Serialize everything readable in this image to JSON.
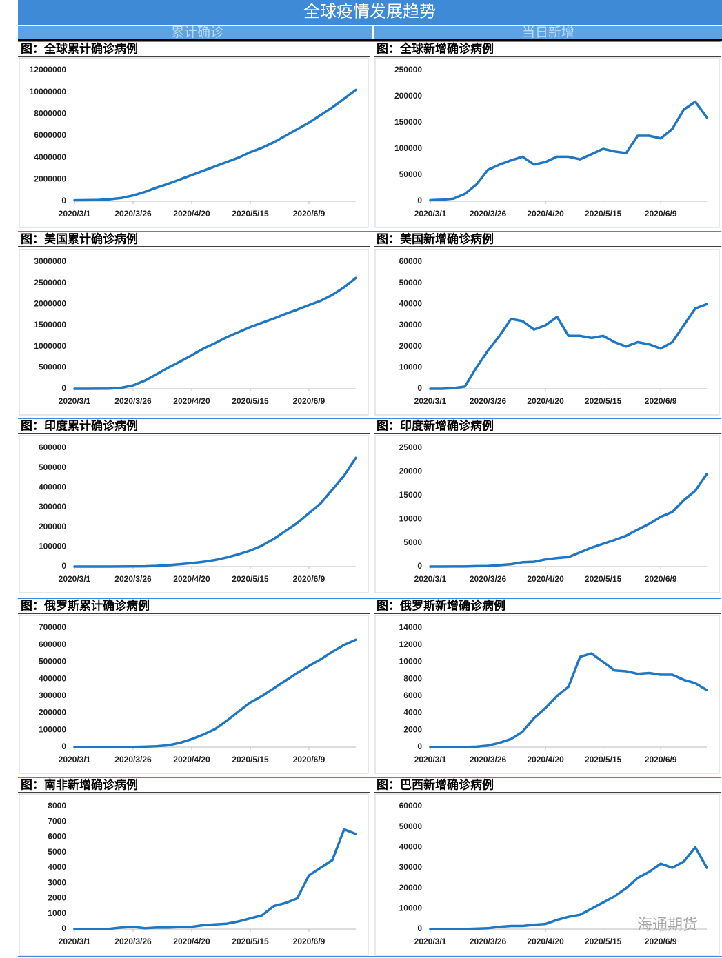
{
  "header": {
    "title": "全球疫情发展趋势",
    "columns": [
      "累计确诊",
      "当日新增"
    ]
  },
  "watermark": "海通期货",
  "chart_data": [
    {
      "type": "line",
      "title": "图：全球累计确诊病例",
      "color": "#1f77c4",
      "categories": [
        "2020/3/1",
        null,
        null,
        null,
        null,
        "2020/3/26",
        null,
        null,
        null,
        null,
        "2020/4/20",
        null,
        null,
        null,
        null,
        "2020/5/15",
        null,
        null,
        null,
        null,
        "2020/6/9",
        null,
        null,
        null,
        null
      ],
      "values": [
        90000,
        100000,
        120000,
        180000,
        300000,
        530000,
        850000,
        1250000,
        1600000,
        2000000,
        2400000,
        2800000,
        3200000,
        3600000,
        4000000,
        4500000,
        4900000,
        5400000,
        6000000,
        6600000,
        7200000,
        7900000,
        8600000,
        9400000,
        10200000
      ],
      "ylim": [
        0,
        12000000
      ],
      "yticks": [
        0,
        2000000,
        4000000,
        6000000,
        8000000,
        10000000,
        12000000
      ]
    },
    {
      "type": "line",
      "title": "图：全球新增确诊病例",
      "color": "#1f77c4",
      "categories": [
        "2020/3/1",
        null,
        null,
        null,
        null,
        "2020/3/26",
        null,
        null,
        null,
        null,
        "2020/4/20",
        null,
        null,
        null,
        null,
        "2020/5/15",
        null,
        null,
        null,
        null,
        "2020/6/9",
        null,
        null,
        null,
        null
      ],
      "values": [
        2000,
        3000,
        5000,
        14000,
        32000,
        60000,
        70000,
        78000,
        85000,
        70000,
        75000,
        85000,
        85000,
        80000,
        90000,
        100000,
        95000,
        92000,
        125000,
        125000,
        120000,
        138000,
        175000,
        190000,
        160000
      ],
      "ylim": [
        0,
        250000
      ],
      "yticks": [
        0,
        50000,
        100000,
        150000,
        200000,
        250000
      ]
    },
    {
      "type": "line",
      "title": "图：美国累计确诊病例",
      "color": "#1f77c4",
      "categories": [
        "2020/3/1",
        null,
        null,
        null,
        null,
        "2020/3/26",
        null,
        null,
        null,
        null,
        "2020/4/20",
        null,
        null,
        null,
        null,
        "2020/5/15",
        null,
        null,
        null,
        null,
        "2020/6/9",
        null,
        null,
        null,
        null
      ],
      "values": [
        0,
        0,
        1000,
        4000,
        25000,
        80000,
        190000,
        340000,
        500000,
        640000,
        790000,
        950000,
        1080000,
        1220000,
        1340000,
        1460000,
        1560000,
        1660000,
        1770000,
        1870000,
        1980000,
        2080000,
        2220000,
        2400000,
        2620000
      ],
      "ylim": [
        0,
        3000000
      ],
      "yticks": [
        0,
        500000,
        1000000,
        1500000,
        2000000,
        2500000,
        3000000
      ]
    },
    {
      "type": "line",
      "title": "图：美国新增确诊病例",
      "color": "#1f77c4",
      "categories": [
        "2020/3/1",
        null,
        null,
        null,
        null,
        "2020/3/26",
        null,
        null,
        null,
        null,
        "2020/4/20",
        null,
        null,
        null,
        null,
        "2020/5/15",
        null,
        null,
        null,
        null,
        "2020/6/9",
        null,
        null,
        null,
        null
      ],
      "values": [
        0,
        0,
        300,
        1000,
        10000,
        18000,
        25000,
        33000,
        32000,
        28000,
        30000,
        34000,
        25000,
        25000,
        24000,
        25000,
        22000,
        20000,
        22000,
        21000,
        19000,
        22000,
        30000,
        38000,
        40000
      ],
      "ylim": [
        0,
        60000
      ],
      "yticks": [
        0,
        10000,
        20000,
        30000,
        40000,
        50000,
        60000
      ]
    },
    {
      "type": "line",
      "title": "图：印度累计确诊病例",
      "color": "#1f77c4",
      "categories": [
        "2020/3/1",
        null,
        null,
        null,
        null,
        "2020/3/26",
        null,
        null,
        null,
        null,
        "2020/4/20",
        null,
        null,
        null,
        null,
        "2020/5/15",
        null,
        null,
        null,
        null,
        "2020/6/9",
        null,
        null,
        null,
        null
      ],
      "values": [
        0,
        0,
        60,
        110,
        300,
        700,
        1400,
        3500,
        7000,
        12000,
        17000,
        24000,
        33000,
        46000,
        62000,
        81000,
        106000,
        140000,
        180000,
        220000,
        270000,
        320000,
        390000,
        460000,
        550000
      ],
      "ylim": [
        0,
        600000
      ],
      "yticks": [
        0,
        100000,
        200000,
        300000,
        400000,
        500000,
        600000
      ]
    },
    {
      "type": "line",
      "title": "图：印度新增确诊病例",
      "color": "#1f77c4",
      "categories": [
        "2020/3/1",
        null,
        null,
        null,
        null,
        "2020/3/26",
        null,
        null,
        null,
        null,
        "2020/4/20",
        null,
        null,
        null,
        null,
        "2020/5/15",
        null,
        null,
        null,
        null,
        "2020/6/9",
        null,
        null,
        null,
        null
      ],
      "values": [
        0,
        0,
        10,
        20,
        80,
        100,
        300,
        500,
        900,
        1000,
        1500,
        1800,
        2000,
        3000,
        4000,
        4800,
        5600,
        6500,
        7800,
        9000,
        10500,
        11500,
        14000,
        16000,
        19500
      ],
      "ylim": [
        0,
        25000
      ],
      "yticks": [
        0,
        5000,
        10000,
        15000,
        20000,
        25000
      ]
    },
    {
      "type": "line",
      "title": "图：俄罗斯累计确诊病例",
      "color": "#1f77c4",
      "categories": [
        "2020/3/1",
        null,
        null,
        null,
        null,
        "2020/3/26",
        null,
        null,
        null,
        null,
        "2020/4/20",
        null,
        null,
        null,
        null,
        "2020/5/15",
        null,
        null,
        null,
        null,
        "2020/6/9",
        null,
        null,
        null,
        null
      ],
      "values": [
        0,
        0,
        20,
        60,
        300,
        800,
        2300,
        5400,
        11000,
        25000,
        47000,
        74000,
        106000,
        155000,
        210000,
        262000,
        300000,
        345000,
        390000,
        435000,
        477000,
        515000,
        560000,
        600000,
        630000
      ],
      "ylim": [
        0,
        700000
      ],
      "yticks": [
        0,
        100000,
        200000,
        300000,
        400000,
        500000,
        600000,
        700000
      ]
    },
    {
      "type": "line",
      "title": "图：俄罗斯新增确诊病例",
      "color": "#1f77c4",
      "categories": [
        "2020/3/1",
        null,
        null,
        null,
        null,
        "2020/3/26",
        null,
        null,
        null,
        null,
        "2020/4/20",
        null,
        null,
        null,
        null,
        "2020/5/15",
        null,
        null,
        null,
        null,
        "2020/6/9",
        null,
        null,
        null,
        null
      ],
      "values": [
        0,
        0,
        3,
        10,
        50,
        180,
        500,
        950,
        1800,
        3400,
        4600,
        6000,
        7100,
        10600,
        11000,
        10000,
        9000,
        8900,
        8600,
        8700,
        8500,
        8500,
        7900,
        7500,
        6700
      ],
      "ylim": [
        0,
        14000
      ],
      "yticks": [
        0,
        2000,
        4000,
        6000,
        8000,
        10000,
        12000,
        14000
      ]
    },
    {
      "type": "line",
      "title": "图：南非新增确诊病例",
      "color": "#1f77c4",
      "categories": [
        "2020/3/1",
        null,
        null,
        null,
        null,
        "2020/3/26",
        null,
        null,
        null,
        null,
        "2020/4/20",
        null,
        null,
        null,
        null,
        "2020/5/15",
        null,
        null,
        null,
        null,
        "2020/6/9",
        null,
        null,
        null,
        null
      ],
      "values": [
        0,
        0,
        10,
        20,
        100,
        150,
        50,
        100,
        100,
        130,
        150,
        250,
        300,
        350,
        500,
        700,
        900,
        1500,
        1700,
        2000,
        3500,
        4000,
        4500,
        6500,
        6200
      ],
      "ylim": [
        0,
        8000
      ],
      "yticks": [
        0,
        1000,
        2000,
        3000,
        4000,
        5000,
        6000,
        7000,
        8000
      ]
    },
    {
      "type": "line",
      "title": "图：巴西新增确诊病例",
      "color": "#1f77c4",
      "categories": [
        "2020/3/1",
        null,
        null,
        null,
        null,
        "2020/3/26",
        null,
        null,
        null,
        null,
        "2020/4/20",
        null,
        null,
        null,
        null,
        "2020/5/15",
        null,
        null,
        null,
        null,
        "2020/6/9",
        null,
        null,
        null,
        null
      ],
      "values": [
        0,
        0,
        10,
        50,
        200,
        400,
        1100,
        1500,
        1500,
        2100,
        2500,
        4500,
        6000,
        7000,
        10000,
        13000,
        16000,
        20000,
        25000,
        28000,
        32000,
        30000,
        33000,
        40000,
        30000
      ],
      "ylim": [
        0,
        60000
      ],
      "yticks": [
        0,
        10000,
        20000,
        30000,
        40000,
        50000,
        60000
      ]
    }
  ]
}
